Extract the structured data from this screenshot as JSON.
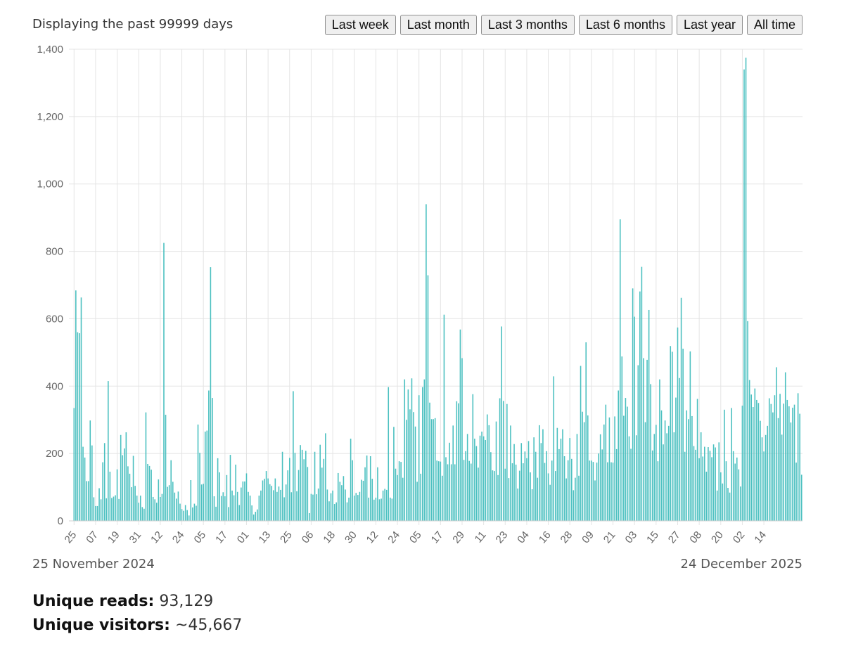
{
  "header": {
    "range_text": "Displaying the past 99999 days"
  },
  "buttons": [
    "Last week",
    "Last month",
    "Last 3 months",
    "Last 6 months",
    "Last year",
    "All time"
  ],
  "footer": {
    "start_date": "25 November 2024",
    "end_date": "24 December 2025"
  },
  "stats": {
    "reads_label": "Unique reads:",
    "reads_value": "93,129",
    "visitors_label": "Unique visitors:",
    "visitors_value": "~45,667"
  },
  "chart_data": {
    "type": "bar",
    "bar_color": "#4bc0c0",
    "grid": true,
    "ylim": [
      0,
      1400
    ],
    "y_ticks": [
      "0",
      "200",
      "400",
      "600",
      "800",
      "1,000",
      "1,200",
      "1,400"
    ],
    "x_tick_labels": [
      "25",
      "07",
      "19",
      "31",
      "12",
      "24",
      "05",
      "17",
      "01",
      "13",
      "25",
      "06",
      "18",
      "30",
      "12",
      "24",
      "05",
      "17",
      "29",
      "11",
      "23",
      "04",
      "16",
      "28",
      "09",
      "21",
      "03",
      "15",
      "27",
      "08",
      "20",
      "02",
      "14"
    ],
    "values": [
      335,
      684,
      560,
      557,
      663,
      220,
      188,
      118,
      118,
      298,
      224,
      70,
      44,
      44,
      97,
      64,
      174,
      231,
      67,
      415,
      146,
      68,
      72,
      76,
      153,
      65,
      255,
      195,
      215,
      263,
      162,
      140,
      100,
      193,
      104,
      75,
      54,
      75,
      41,
      36,
      322,
      169,
      163,
      152,
      71,
      64,
      54,
      123,
      71,
      80,
      825,
      315,
      101,
      106,
      180,
      116,
      84,
      66,
      87,
      51,
      35,
      30,
      47,
      32,
      16,
      121,
      40,
      51,
      45,
      286,
      202,
      108,
      110,
      265,
      268,
      387,
      753,
      365,
      73,
      42,
      186,
      144,
      74,
      85,
      73,
      136,
      41,
      196,
      90,
      76,
      167,
      86,
      47,
      99,
      117,
      117,
      141,
      86,
      75,
      46,
      19,
      27,
      34,
      75,
      90,
      120,
      125,
      148,
      126,
      109,
      104,
      91,
      126,
      86,
      102,
      92,
      205,
      70,
      108,
      150,
      187,
      85,
      385,
      202,
      88,
      151,
      225,
      211,
      183,
      208,
      160,
      23,
      80,
      78,
      205,
      79,
      96,
      226,
      158,
      184,
      260,
      93,
      58,
      82,
      90,
      50,
      55,
      142,
      116,
      106,
      133,
      93,
      55,
      69,
      244,
      180,
      75,
      83,
      77,
      86,
      122,
      119,
      159,
      194,
      69,
      192,
      125,
      63,
      69,
      159,
      64,
      66,
      90,
      95,
      92,
      397,
      69,
      66,
      279,
      155,
      136,
      177,
      175,
      128,
      420,
      300,
      390,
      331,
      423,
      323,
      280,
      116,
      373,
      140,
      397,
      420,
      940,
      729,
      351,
      302,
      302,
      305,
      179,
      177,
      176,
      134,
      612,
      189,
      168,
      232,
      168,
      283,
      168,
      355,
      349,
      568,
      483,
      181,
      207,
      258,
      178,
      170,
      376,
      244,
      222,
      158,
      253,
      265,
      251,
      240,
      316,
      284,
      204,
      150,
      148,
      295,
      136,
      364,
      577,
      356,
      155,
      347,
      127,
      283,
      171,
      228,
      167,
      96,
      149,
      231,
      171,
      206,
      186,
      237,
      144,
      94,
      248,
      205,
      128,
      284,
      231,
      272,
      172,
      207,
      141,
      107,
      179,
      429,
      148,
      276,
      213,
      244,
      272,
      192,
      126,
      180,
      246,
      184,
      91,
      128,
      258,
      134,
      460,
      324,
      293,
      530,
      313,
      179,
      179,
      175,
      120,
      173,
      200,
      257,
      212,
      286,
      345,
      174,
      307,
      174,
      173,
      310,
      213,
      387,
      895,
      488,
      312,
      365,
      339,
      251,
      214,
      690,
      606,
      254,
      462,
      681,
      754,
      483,
      293,
      478,
      626,
      406,
      209,
      258,
      285,
      177,
      420,
      328,
      227,
      298,
      260,
      282,
      519,
      502,
      263,
      366,
      574,
      424,
      662,
      511,
      205,
      328,
      302,
      503,
      311,
      222,
      211,
      362,
      186,
      263,
      191,
      220,
      146,
      219,
      208,
      189,
      227,
      218,
      90,
      233,
      144,
      111,
      330,
      177,
      98,
      84,
      335,
      207,
      170,
      188,
      153,
      102,
      342,
      1340,
      1375,
      593,
      418,
      375,
      338,
      393,
      359,
      350,
      297,
      248,
      206,
      255,
      282,
      364,
      347,
      322,
      373,
      456,
      305,
      377,
      256,
      348,
      441,
      359,
      340,
      292,
      336,
      345,
      173,
      379,
      318,
      137
    ]
  }
}
